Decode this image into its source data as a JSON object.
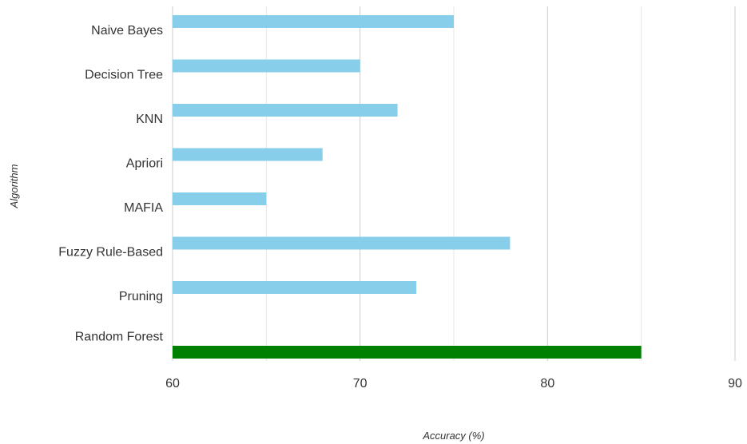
{
  "chart_data": {
    "type": "bar",
    "orientation": "horizontal",
    "categories": [
      "Naive Bayes",
      "Decision Tree",
      "KNN",
      "Apriori",
      "MAFIA",
      "Fuzzy Rule-Based",
      "Pruning",
      "Random Forest"
    ],
    "values": [
      75,
      70,
      72,
      68,
      65,
      78,
      73,
      85
    ],
    "xlabel": "Accuracy (%)",
    "ylabel": "Algorithm",
    "xlim": [
      60,
      90
    ],
    "xticks": [
      "60",
      "70",
      "80",
      "90"
    ],
    "grid": true,
    "colors": {
      "default_bar": "#87ceeb",
      "highlight_bar": "#008000",
      "major_grid": "#cccccc",
      "minor_grid": "#e6e6e6"
    },
    "highlight_category": "Random Forest"
  }
}
